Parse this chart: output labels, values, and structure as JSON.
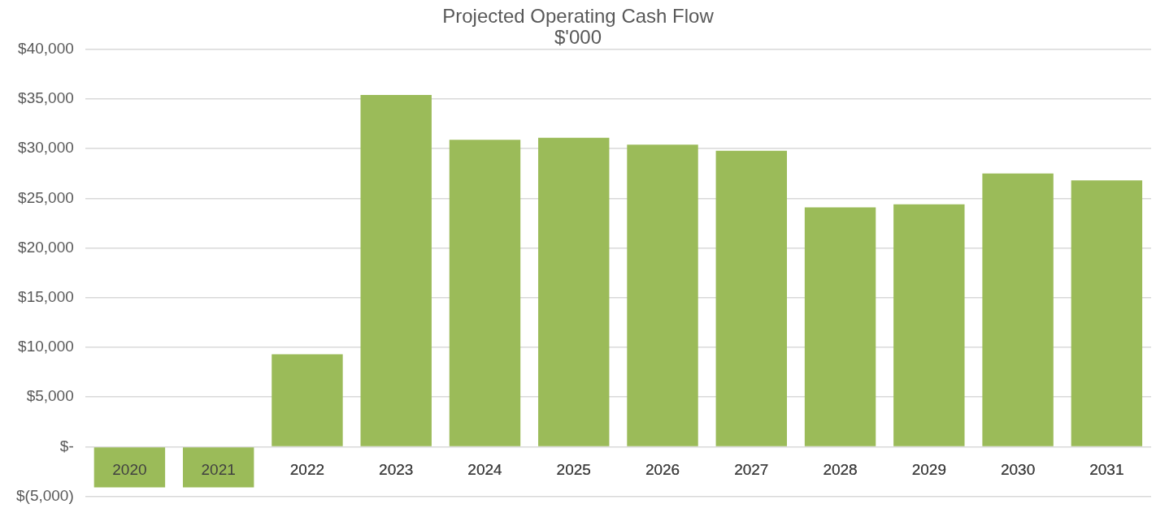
{
  "chart_data": {
    "type": "bar",
    "title": "Projected Operating Cash Flow",
    "subtitle": "$'000",
    "categories": [
      "2020",
      "2021",
      "2022",
      "2023",
      "2024",
      "2025",
      "2026",
      "2027",
      "2028",
      "2029",
      "2030",
      "2031"
    ],
    "values": [
      -4100,
      -4100,
      9300,
      35400,
      30900,
      31100,
      30400,
      29800,
      24100,
      24400,
      27500,
      26800
    ],
    "color": "#9bbb59",
    "ylim": [
      -5000,
      40000
    ],
    "yticks": [
      {
        "value": -5000,
        "label": "$(5,000)"
      },
      {
        "value": 0,
        "label": "$-"
      },
      {
        "value": 5000,
        "label": "$5,000"
      },
      {
        "value": 10000,
        "label": "$10,000"
      },
      {
        "value": 15000,
        "label": "$15,000"
      },
      {
        "value": 20000,
        "label": "$20,000"
      },
      {
        "value": 25000,
        "label": "$25,000"
      },
      {
        "value": 30000,
        "label": "$30,000"
      },
      {
        "value": 35000,
        "label": "$35,000"
      },
      {
        "value": 40000,
        "label": "$40,000"
      }
    ],
    "grid": "y",
    "legend": false
  }
}
